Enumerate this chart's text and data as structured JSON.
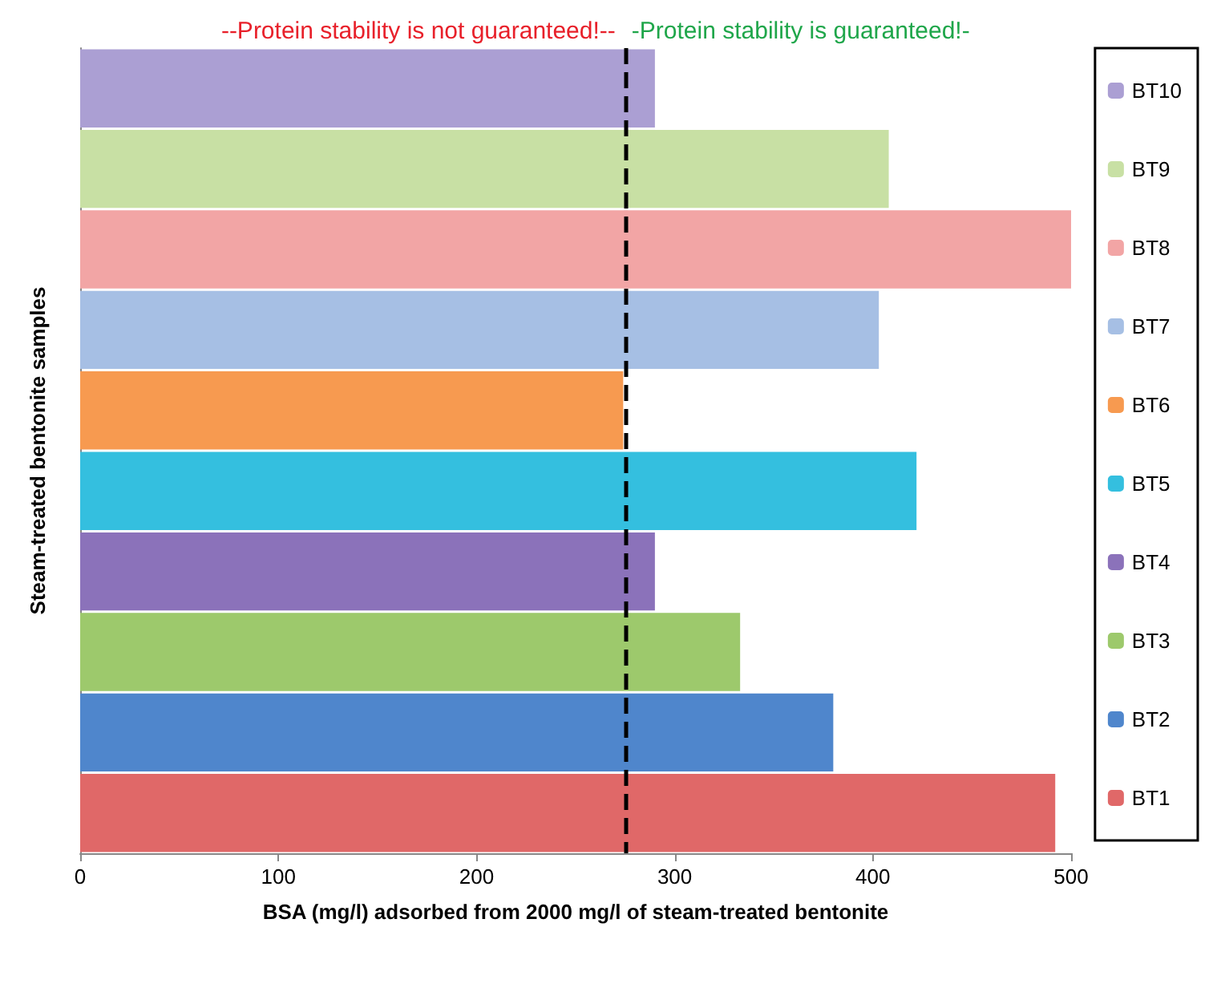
{
  "chart_data": {
    "type": "bar",
    "orientation": "horizontal",
    "xlabel": "BSA (mg/l) adsorbed from 2000 mg/l of steam-treated bentonite",
    "ylabel": "Steam-treated bentonite samples",
    "categories": [
      null,
      null,
      null,
      null,
      null,
      null,
      null,
      null,
      null,
      null
    ],
    "series": [
      {
        "name": "BT10",
        "color": "#ab9fd3",
        "values": [
          290,
          null,
          null,
          null,
          null,
          null,
          null,
          null,
          null,
          null
        ]
      },
      {
        "name": "BT9",
        "color": "#c8e0a4",
        "values": [
          null,
          408,
          null,
          null,
          null,
          null,
          null,
          null,
          null,
          null
        ]
      },
      {
        "name": "BT8",
        "color": "#f2a5a5",
        "values": [
          null,
          null,
          500,
          null,
          null,
          null,
          null,
          null,
          null,
          null
        ]
      },
      {
        "name": "BT7",
        "color": "#a6bfe4",
        "values": [
          null,
          null,
          null,
          403,
          null,
          null,
          null,
          null,
          null,
          null
        ]
      },
      {
        "name": "BT6",
        "color": "#f79a50",
        "values": [
          null,
          null,
          null,
          null,
          274,
          null,
          null,
          null,
          null,
          null
        ]
      },
      {
        "name": "BT5",
        "color": "#34bfdf",
        "values": [
          null,
          null,
          null,
          null,
          null,
          422,
          null,
          null,
          null,
          null
        ]
      },
      {
        "name": "BT4",
        "color": "#8b72ba",
        "values": [
          null,
          null,
          null,
          null,
          null,
          null,
          290,
          null,
          null,
          null
        ]
      },
      {
        "name": "BT3",
        "color": "#9dc96c",
        "values": [
          null,
          null,
          null,
          null,
          null,
          null,
          null,
          333,
          null,
          null
        ]
      },
      {
        "name": "BT2",
        "color": "#4f86cc",
        "values": [
          null,
          null,
          null,
          null,
          null,
          null,
          null,
          null,
          380,
          null
        ]
      },
      {
        "name": "BT1",
        "color": "#e06868",
        "values": [
          null,
          null,
          null,
          null,
          null,
          null,
          null,
          null,
          null,
          492
        ]
      }
    ],
    "xlim": [
      0,
      500
    ],
    "xticks": [
      0,
      100,
      200,
      300,
      400,
      500
    ],
    "grid": false,
    "legend": "right",
    "ref_lines": [
      {
        "axis": "x",
        "value": 275,
        "color": "#000000",
        "line_style": "dashed"
      }
    ],
    "annotations": [
      "--Protein stability is not guaranteed!--",
      "-Protein stability is guaranteed!-"
    ]
  }
}
